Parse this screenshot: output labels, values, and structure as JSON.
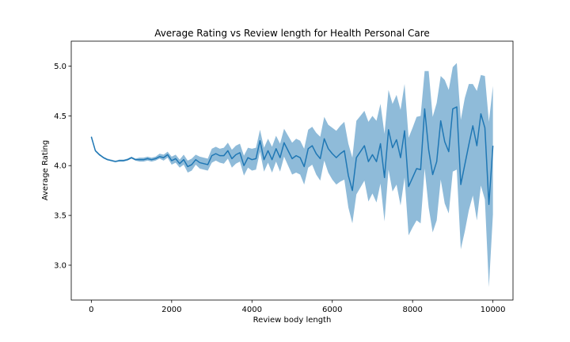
{
  "chart_data": {
    "type": "line",
    "title": "Average Rating vs Review length for Health Personal Care",
    "xlabel": "Review body length",
    "ylabel": "Average Rating",
    "xlim": [
      -500,
      10500
    ],
    "ylim": [
      2.65,
      5.25
    ],
    "xticks": [
      0,
      2000,
      4000,
      6000,
      8000,
      10000
    ],
    "yticks": [
      3.0,
      3.5,
      4.0,
      4.5,
      5.0
    ],
    "xtick_labels": [
      "0",
      "2000",
      "4000",
      "6000",
      "8000",
      "10000"
    ],
    "ytick_labels": [
      "3.0",
      "3.5",
      "4.0",
      "4.5",
      "5.0"
    ],
    "grid": false,
    "series": [
      {
        "line_color": "#1f77b4",
        "band_color": "#1f77b4",
        "x": [
          0,
          100,
          200,
          300,
          400,
          500,
          600,
          700,
          800,
          900,
          1000,
          1100,
          1200,
          1300,
          1400,
          1500,
          1600,
          1700,
          1800,
          1900,
          2000,
          2100,
          2200,
          2300,
          2400,
          2500,
          2600,
          2700,
          2800,
          2900,
          3000,
          3100,
          3200,
          3300,
          3400,
          3500,
          3600,
          3700,
          3800,
          3900,
          4000,
          4100,
          4200,
          4300,
          4400,
          4500,
          4600,
          4700,
          4800,
          4900,
          5000,
          5100,
          5200,
          5300,
          5400,
          5500,
          5600,
          5700,
          5800,
          5900,
          6000,
          6100,
          6200,
          6300,
          6400,
          6500,
          6600,
          6700,
          6800,
          6900,
          7000,
          7100,
          7200,
          7300,
          7400,
          7500,
          7600,
          7700,
          7800,
          7900,
          8000,
          8100,
          8200,
          8300,
          8400,
          8500,
          8600,
          8700,
          8800,
          8900,
          9000,
          9100,
          9200,
          9300,
          9400,
          9500,
          9600,
          9700,
          9800,
          9900,
          10000
        ],
        "y": [
          4.29,
          4.15,
          4.11,
          4.08,
          4.06,
          4.05,
          4.04,
          4.05,
          4.05,
          4.06,
          4.08,
          4.06,
          4.06,
          4.06,
          4.07,
          4.06,
          4.07,
          4.09,
          4.08,
          4.11,
          4.05,
          4.07,
          4.02,
          4.06,
          3.99,
          4.01,
          4.06,
          4.03,
          4.02,
          4.01,
          4.1,
          4.12,
          4.1,
          4.1,
          4.15,
          4.07,
          4.11,
          4.13,
          4.0,
          4.08,
          4.06,
          4.07,
          4.25,
          4.06,
          4.15,
          4.06,
          4.17,
          4.08,
          4.23,
          4.15,
          4.07,
          4.1,
          4.08,
          3.99,
          4.17,
          4.2,
          4.12,
          4.07,
          4.27,
          4.17,
          4.12,
          4.08,
          4.12,
          4.15,
          3.9,
          3.75,
          4.08,
          4.14,
          4.2,
          4.04,
          4.11,
          4.04,
          4.22,
          3.88,
          4.36,
          4.18,
          4.26,
          4.08,
          4.35,
          3.79,
          3.88,
          3.97,
          3.96,
          4.57,
          4.16,
          3.91,
          4.04,
          4.45,
          4.24,
          4.14,
          4.57,
          4.59,
          3.81,
          4.01,
          4.21,
          4.4,
          4.2,
          4.52,
          4.38,
          3.61,
          4.2
        ],
        "lower": [
          4.28,
          4.14,
          4.1,
          4.08,
          4.06,
          4.05,
          4.04,
          4.04,
          4.04,
          4.05,
          4.07,
          4.05,
          4.04,
          4.04,
          4.05,
          4.04,
          4.05,
          4.07,
          4.05,
          4.08,
          4.01,
          4.03,
          3.98,
          4.01,
          3.93,
          3.95,
          4.01,
          3.97,
          3.96,
          3.95,
          4.03,
          4.05,
          4.03,
          4.02,
          4.07,
          3.98,
          4.02,
          4.04,
          3.9,
          3.98,
          3.95,
          3.96,
          4.14,
          3.94,
          4.03,
          3.93,
          4.04,
          3.94,
          4.09,
          4.0,
          3.91,
          3.93,
          3.91,
          3.81,
          3.98,
          4.01,
          3.91,
          3.85,
          4.05,
          3.93,
          3.86,
          3.81,
          3.84,
          3.86,
          3.58,
          3.42,
          3.71,
          3.78,
          3.85,
          3.64,
          3.72,
          3.63,
          3.82,
          3.44,
          3.96,
          3.74,
          3.81,
          3.6,
          3.88,
          3.3,
          3.38,
          3.45,
          3.42,
          3.97,
          3.58,
          3.33,
          3.45,
          3.86,
          3.62,
          3.52,
          3.94,
          3.96,
          3.16,
          3.34,
          3.55,
          3.7,
          3.45,
          3.8,
          3.66,
          2.78,
          3.51
        ],
        "upper": [
          4.3,
          4.16,
          4.12,
          4.09,
          4.07,
          4.06,
          4.05,
          4.06,
          4.06,
          4.07,
          4.09,
          4.07,
          4.08,
          4.08,
          4.09,
          4.08,
          4.09,
          4.12,
          4.11,
          4.14,
          4.09,
          4.11,
          4.06,
          4.11,
          4.05,
          4.07,
          4.11,
          4.09,
          4.08,
          4.07,
          4.17,
          4.19,
          4.17,
          4.18,
          4.23,
          4.16,
          4.2,
          4.22,
          4.1,
          4.18,
          4.17,
          4.18,
          4.36,
          4.18,
          4.27,
          4.19,
          4.3,
          4.22,
          4.37,
          4.3,
          4.23,
          4.27,
          4.25,
          4.17,
          4.36,
          4.39,
          4.33,
          4.29,
          4.49,
          4.41,
          4.38,
          4.35,
          4.4,
          4.44,
          4.22,
          4.08,
          4.45,
          4.5,
          4.55,
          4.44,
          4.5,
          4.45,
          4.62,
          4.32,
          4.76,
          4.62,
          4.71,
          4.56,
          4.82,
          4.28,
          4.38,
          4.49,
          4.5,
          4.95,
          4.95,
          4.49,
          4.63,
          4.9,
          4.86,
          4.76,
          4.99,
          5.03,
          4.46,
          4.68,
          4.82,
          4.82,
          4.75,
          4.91,
          4.9,
          4.44,
          4.8
        ]
      }
    ]
  }
}
